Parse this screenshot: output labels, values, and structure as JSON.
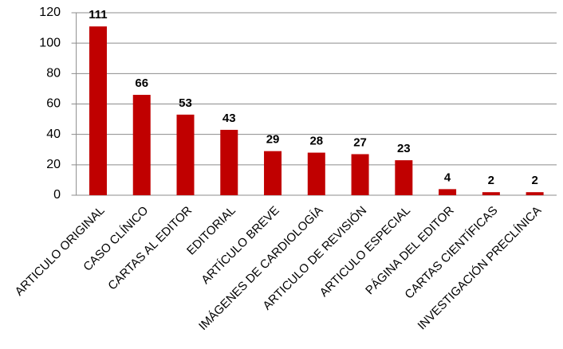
{
  "chart_data": {
    "type": "bar",
    "categories": [
      "ARTICULO ORIGINAL",
      "CASO CLÍNICO",
      "CARTAS AL EDITOR",
      "EDITORIAL",
      "ARTÍCULO BREVE",
      "IMÁGENES DE CARDIOLOGÍA",
      "ARTICULO DE REVISIÓN",
      "ARTICULO ESPECIAL",
      "PÁGINA DEL EDITOR",
      "CARTAS CIENTÍFICAS",
      "INVESTIGACIÓN PRECLÍNICA"
    ],
    "values": [
      111,
      66,
      53,
      43,
      29,
      28,
      27,
      23,
      4,
      2,
      2
    ],
    "color": "#c00000",
    "ylim": [
      0,
      120
    ],
    "yticks": [
      0,
      20,
      40,
      60,
      80,
      100,
      120
    ],
    "grid": true
  }
}
